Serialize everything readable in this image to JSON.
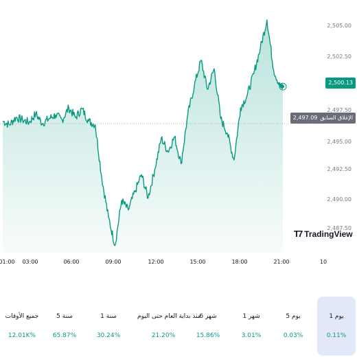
{
  "chart": {
    "y_ticks": [
      "2,505.00",
      "2,502.50",
      "2,497.50",
      "2,495.00",
      "2,492.50",
      "2,490.00",
      "2,487.50"
    ],
    "x_ticks": [
      "01:00",
      "03:00",
      "06:00",
      "09:00",
      "12:00",
      "15:00",
      "18:00",
      "21:00",
      "10"
    ],
    "current_price": "2,500.13",
    "previous_close_label": "الإغلاق السابق",
    "previous_close_value": "2,497.09",
    "logo_text": "TradingView",
    "colors": {
      "line": "#089981",
      "fill": "#089981",
      "badge_current": "#089981",
      "badge_prev": "#6a6d78"
    }
  },
  "chart_data": {
    "type": "area",
    "title": "",
    "xlabel": "",
    "ylabel": "",
    "ylim": [
      2486.5,
      2506
    ],
    "previous_close": 2497.09,
    "x_tick_labels": [
      "01:00",
      "03:00",
      "06:00",
      "09:00",
      "12:00",
      "15:00",
      "18:00",
      "21:00",
      "10"
    ],
    "series": [
      {
        "x": [
          0,
          0.5,
          1,
          1.5,
          2,
          2.5,
          3,
          3.5,
          4,
          4.5,
          5,
          5.5,
          6,
          6.5,
          7,
          7.5,
          8,
          8.5,
          9,
          9.5,
          10,
          10.5,
          11,
          11.5,
          12,
          12.5,
          13,
          13.5,
          14,
          14.5,
          15,
          15.5,
          16,
          16.5,
          17,
          17.5,
          18,
          18.5,
          19,
          19.5,
          20,
          20.5,
          21,
          21.2
        ],
        "values": [
          2497.3,
          2497.0,
          2497.6,
          2497.4,
          2497.2,
          2497.9,
          2497.1,
          2497.5,
          2497.8,
          2497.4,
          2498.4,
          2497.6,
          2498.3,
          2497.3,
          2497.0,
          2492.6,
          2489.4,
          2487.1,
          2490.8,
          2490.0,
          2491.5,
          2492.9,
          2491.0,
          2493.3,
          2495.9,
          2494.8,
          2496.0,
          2493.8,
          2497.8,
          2500.2,
          2502.3,
          2499.9,
          2501.6,
          2497.5,
          2496.3,
          2494.1,
          2498.4,
          2499.4,
          2501.2,
          2503.3,
          2505.6,
          2501.5,
          2500.1,
          2500.13
        ]
      }
    ]
  },
  "periods": [
    {
      "label": "1 يوم",
      "value": "0.11%",
      "active": true
    },
    {
      "label": "5 يوم",
      "value": "0.03%",
      "active": false
    },
    {
      "label": "1 شهر",
      "value": "3.01%",
      "active": false
    },
    {
      "label": "6 شهر",
      "value": "15.86%",
      "active": false
    },
    {
      "label": "منذ بداية العام حتى اليوم",
      "value": "21.20%",
      "active": false
    },
    {
      "label": "1 سنة",
      "value": "30.24%",
      "active": false
    },
    {
      "label": "5 سنة",
      "value": "65.87%",
      "active": false
    },
    {
      "label": "جميع الأوقات",
      "value": "12.01K%",
      "active": false
    }
  ]
}
